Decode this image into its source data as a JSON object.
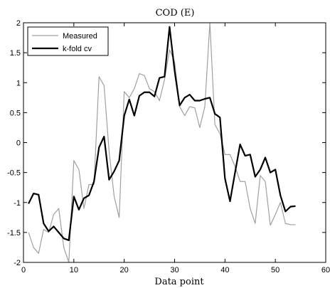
{
  "chart_data": {
    "type": "line",
    "title": "COD (E)",
    "xlabel": "Data point",
    "ylabel": "",
    "xlim": [
      0,
      60
    ],
    "ylim": [
      -2,
      2
    ],
    "xticks": [
      0,
      10,
      20,
      30,
      40,
      50,
      60
    ],
    "yticks": [
      -2,
      -1.5,
      -1,
      -0.5,
      0,
      0.5,
      1,
      1.5,
      2
    ],
    "xtick_labels": [
      "0",
      "10",
      "20",
      "30",
      "40",
      "50",
      "60"
    ],
    "ytick_labels": [
      "-2",
      "-1.5",
      "-1",
      "-0.5",
      "0",
      "0.5",
      "1",
      "1.5",
      "2"
    ],
    "grid": false,
    "legend_position": "top-left",
    "series": [
      {
        "name": "Measured",
        "color": "#a0a0a0",
        "width": 1.2,
        "x": [
          1,
          2,
          3,
          4,
          5,
          6,
          7,
          8,
          9,
          10,
          11,
          12,
          13,
          14,
          15,
          16,
          17,
          18,
          19,
          20,
          21,
          22,
          23,
          24,
          25,
          26,
          27,
          28,
          29,
          30,
          31,
          32,
          33,
          34,
          35,
          36,
          37,
          38,
          39,
          40,
          41,
          42,
          43,
          44,
          45,
          46,
          47,
          48,
          49,
          50,
          51,
          52,
          53,
          54
        ],
        "y": [
          -1.5,
          -1.75,
          -1.85,
          -1.45,
          -1.5,
          -1.2,
          -1.1,
          -1.75,
          -2.0,
          -0.3,
          -0.45,
          -1.1,
          -0.7,
          -0.7,
          1.1,
          0.95,
          -0.15,
          -0.9,
          -1.25,
          0.85,
          0.75,
          0.9,
          1.15,
          1.12,
          0.9,
          0.85,
          0.7,
          1.05,
          1.55,
          1.35,
          0.6,
          0.45,
          0.6,
          0.58,
          0.25,
          0.6,
          2.0,
          0.3,
          0.15,
          -0.2,
          -0.2,
          -0.4,
          -0.65,
          -0.65,
          -1.1,
          -1.35,
          -0.55,
          -0.65,
          -1.38,
          -1.2,
          -1.0,
          -1.35,
          -1.37,
          -1.37
        ]
      },
      {
        "name": "k-fold cv",
        "color": "#000000",
        "width": 2.2,
        "x": [
          1,
          2,
          3,
          4,
          5,
          6,
          7,
          8,
          9,
          10,
          11,
          12,
          13,
          14,
          15,
          16,
          17,
          18,
          19,
          20,
          21,
          22,
          23,
          24,
          25,
          26,
          27,
          28,
          29,
          30,
          31,
          32,
          33,
          34,
          35,
          36,
          37,
          38,
          39,
          40,
          41,
          42,
          43,
          44,
          45,
          46,
          47,
          48,
          49,
          50,
          51,
          52,
          53,
          54
        ],
        "y": [
          -1.02,
          -0.85,
          -0.87,
          -1.35,
          -1.48,
          -1.4,
          -1.5,
          -1.6,
          -1.63,
          -0.9,
          -1.12,
          -0.93,
          -0.88,
          -0.65,
          -0.08,
          0.1,
          -0.62,
          -0.48,
          -0.3,
          0.45,
          0.72,
          0.45,
          0.78,
          0.84,
          0.84,
          0.77,
          1.08,
          1.1,
          1.93,
          1.2,
          0.62,
          0.75,
          0.8,
          0.7,
          0.7,
          0.73,
          0.75,
          0.48,
          0.42,
          -0.6,
          -0.98,
          -0.5,
          -0.03,
          -0.22,
          -0.2,
          -0.57,
          -0.45,
          -0.25,
          -0.5,
          -0.45,
          -0.88,
          -1.15,
          -1.07,
          -1.06
        ]
      }
    ]
  }
}
